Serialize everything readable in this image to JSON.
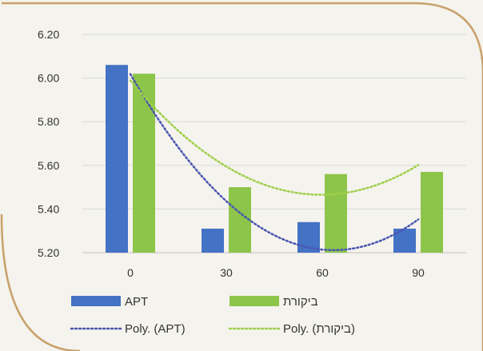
{
  "chart_data": {
    "type": "bar",
    "categories": [
      "0",
      "30",
      "60",
      "90"
    ],
    "ylim": [
      5.2,
      6.2
    ],
    "yticks": [
      "5.20",
      "5.40",
      "5.60",
      "5.80",
      "6.00",
      "6.20"
    ],
    "grid": true,
    "legend_position": "bottom",
    "series": [
      {
        "name": "APT",
        "color": "#4472c4",
        "values": [
          6.06,
          5.31,
          5.34,
          5.31
        ]
      },
      {
        "name": "ביקורת",
        "color": "#8dc54b",
        "values": [
          6.02,
          5.5,
          5.56,
          5.57
        ]
      }
    ],
    "trendlines": [
      {
        "name": "Poly. (APT)",
        "color": "#4a55b0",
        "style": "dotted",
        "degree": 2,
        "of_series": "APT"
      },
      {
        "name": "Poly. (ביקורת)",
        "color": "#9fcf4a",
        "style": "dotted",
        "degree": 2,
        "of_series": "ביקורת"
      }
    ]
  }
}
